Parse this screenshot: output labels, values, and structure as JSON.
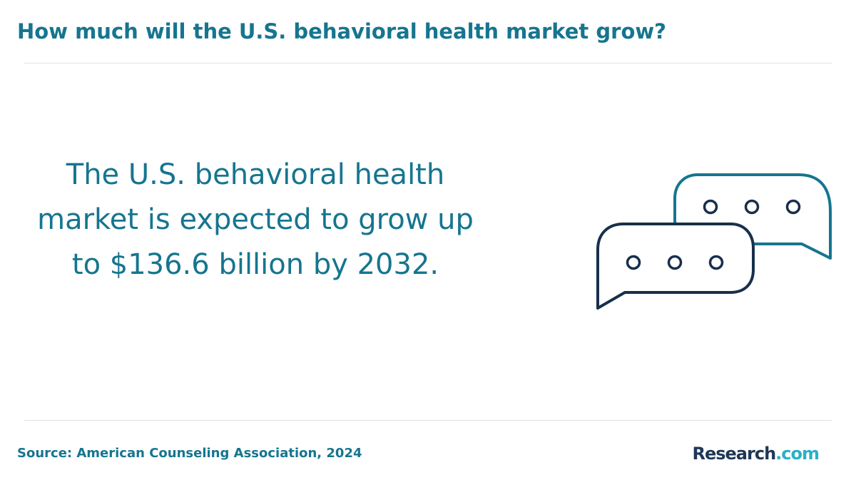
{
  "header": {
    "title": "How much will the U.S. behavioral health market grow?"
  },
  "main": {
    "statement": "The U.S. behavioral health market is expected to grow up to $136.6 billion by 2032.",
    "illustration_icon": "chat-bubbles-icon"
  },
  "footer": {
    "source": "Source: American Counseling Association, 2024",
    "brand_name": "Research",
    "brand_suffix": ".com"
  },
  "colors": {
    "accent": "#16758f",
    "bubble_back": "#16758f",
    "bubble_front": "#17304b",
    "brand_dark": "#1f3657",
    "brand_light": "#2ab0c9",
    "divider": "#e3e3e3"
  }
}
